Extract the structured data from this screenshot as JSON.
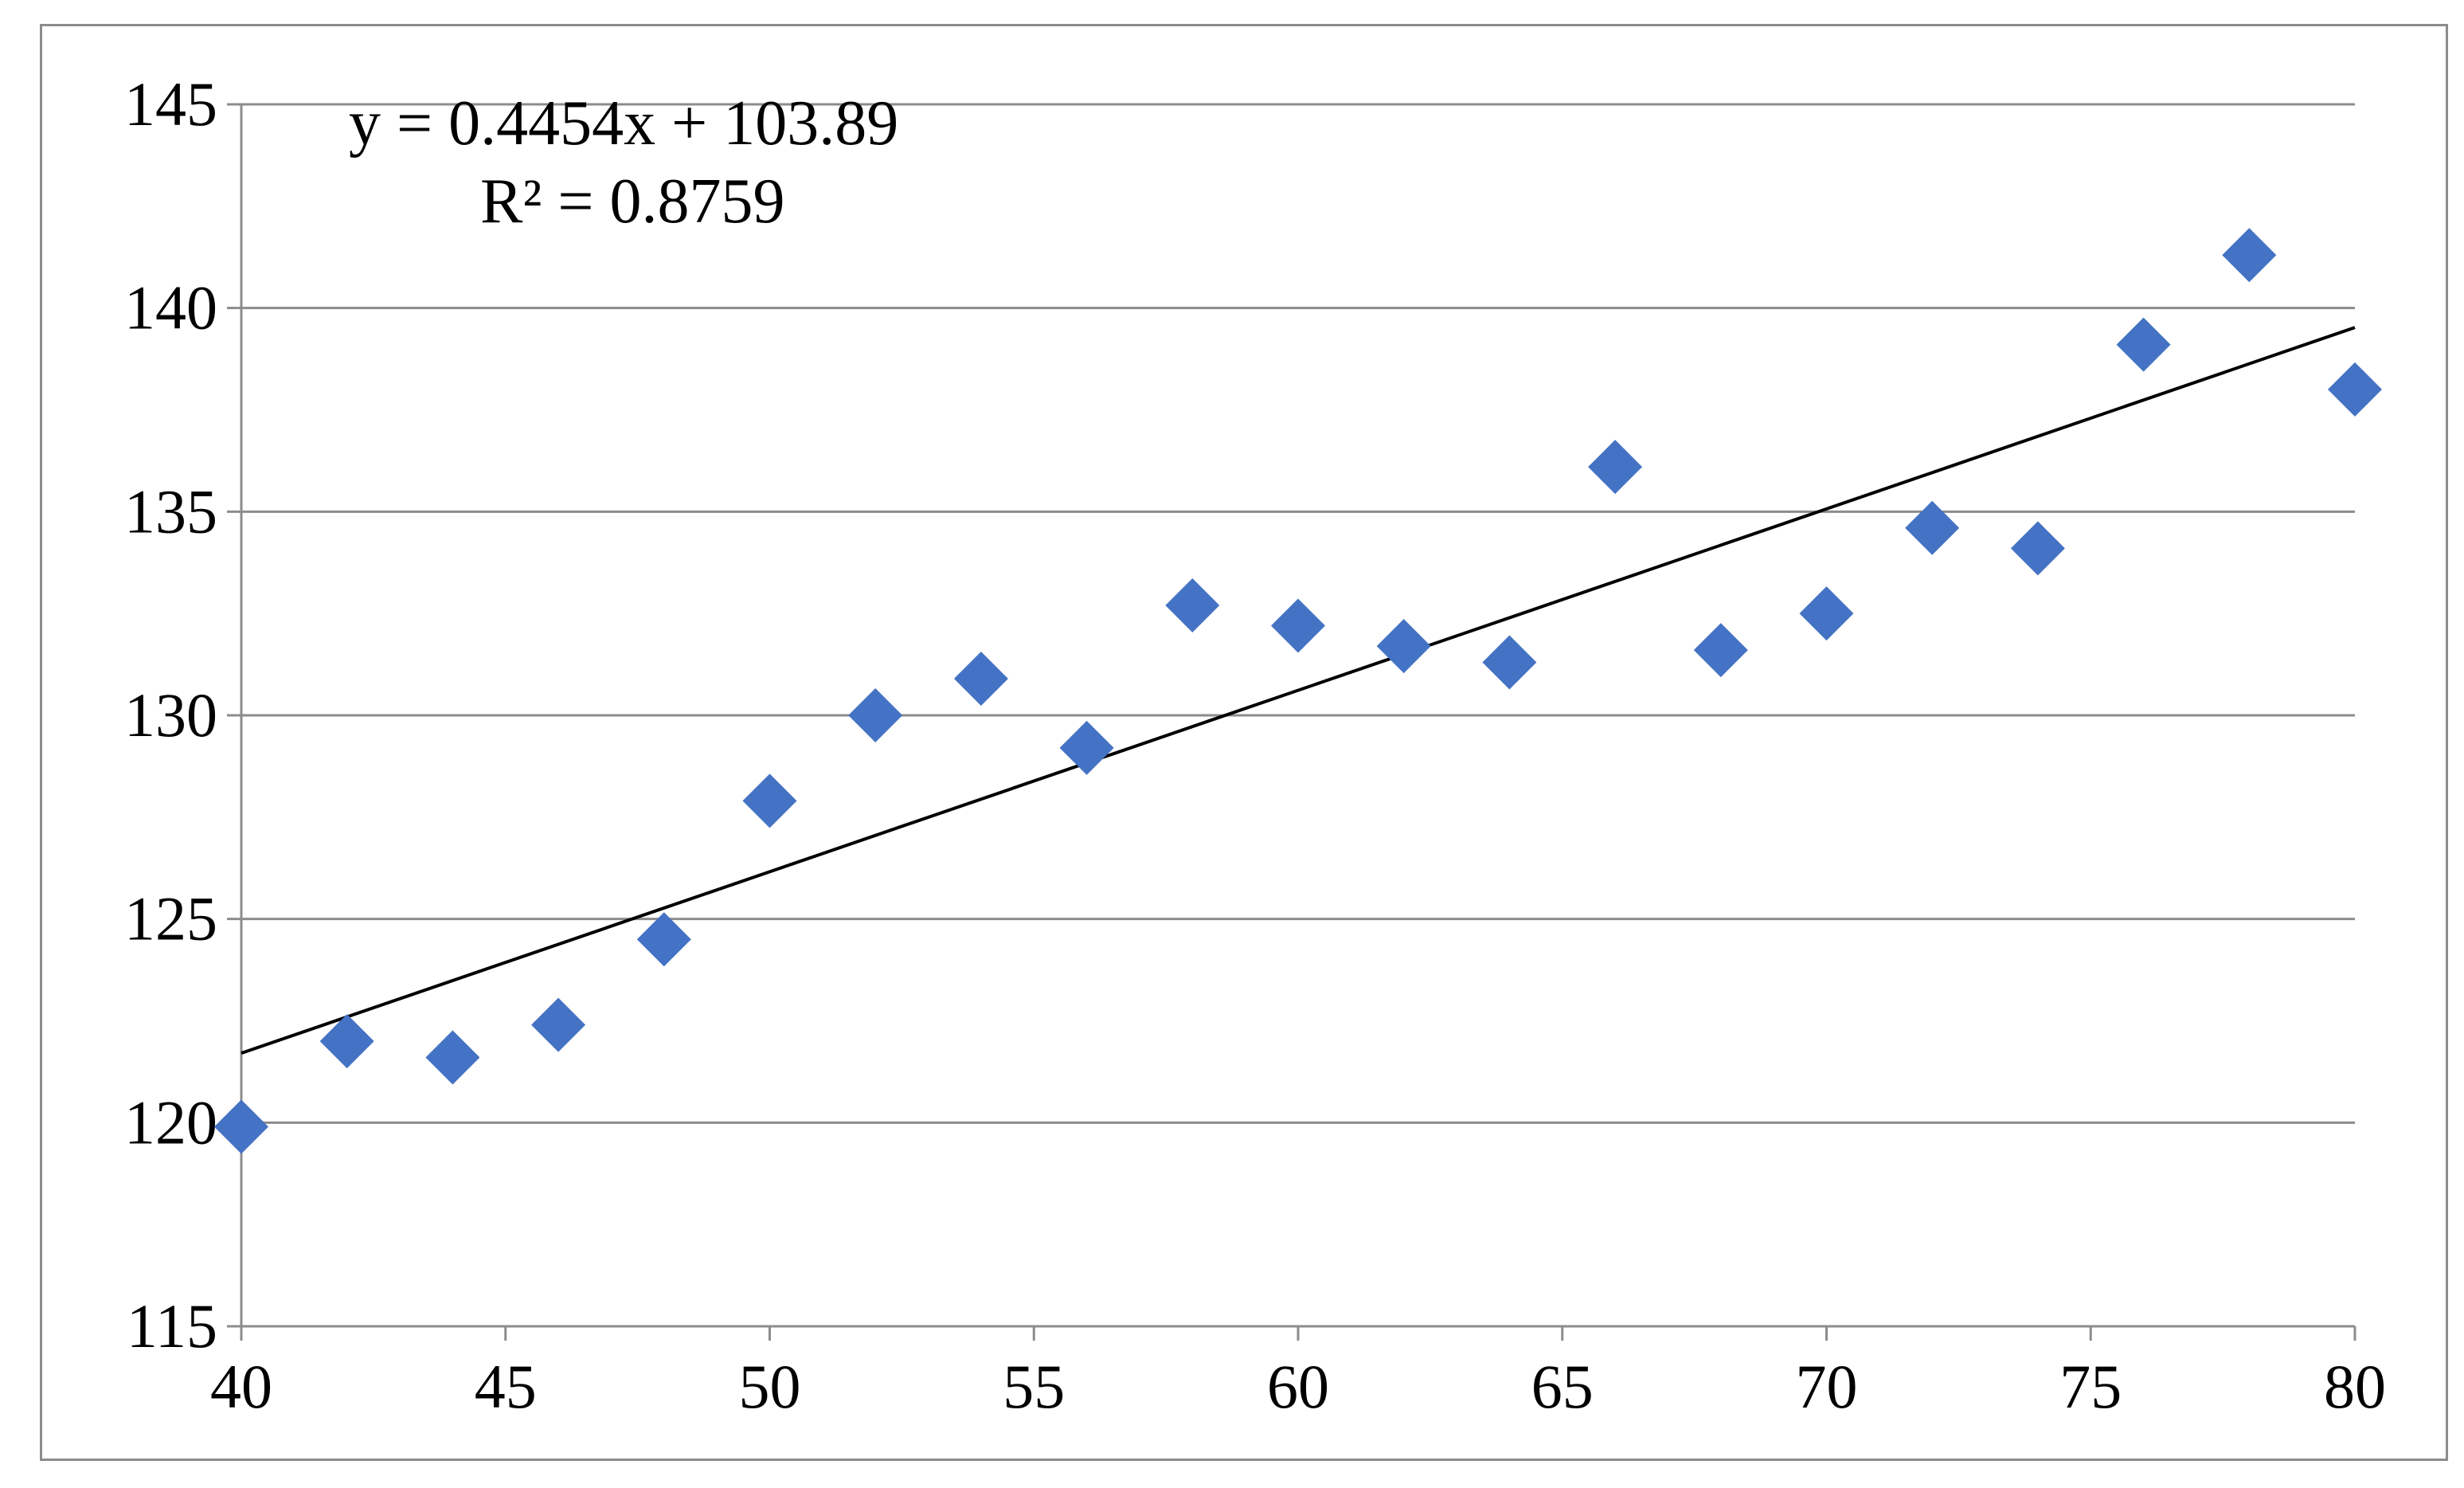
{
  "chart_data": {
    "type": "scatter",
    "title": "",
    "xlabel": "",
    "ylabel": "",
    "xlim": [
      40,
      80
    ],
    "ylim": [
      115,
      145
    ],
    "x_ticks": [
      40,
      45,
      50,
      55,
      60,
      65,
      70,
      75,
      80
    ],
    "y_ticks": [
      115,
      120,
      125,
      130,
      135,
      140,
      145
    ],
    "x_tick_labels": [
      "40",
      "45",
      "50",
      "55",
      "60",
      "65",
      "70",
      "75",
      "80"
    ],
    "y_tick_labels": [
      "115",
      "120",
      "125",
      "130",
      "135",
      "140",
      "145"
    ],
    "grid": "horizontal",
    "legend": "none",
    "series": [
      {
        "marker": "diamond",
        "color": "#4472C4",
        "points": [
          {
            "x": 40,
            "y": 119.9
          },
          {
            "x": 42,
            "y": 122.0
          },
          {
            "x": 44,
            "y": 121.6
          },
          {
            "x": 46,
            "y": 122.4
          },
          {
            "x": 48,
            "y": 124.5
          },
          {
            "x": 50,
            "y": 127.9
          },
          {
            "x": 52,
            "y": 130.0
          },
          {
            "x": 54,
            "y": 130.9
          },
          {
            "x": 56,
            "y": 129.2
          },
          {
            "x": 58,
            "y": 132.7
          },
          {
            "x": 60,
            "y": 132.2
          },
          {
            "x": 62,
            "y": 131.7
          },
          {
            "x": 64,
            "y": 131.3
          },
          {
            "x": 66,
            "y": 136.1
          },
          {
            "x": 68,
            "y": 131.6
          },
          {
            "x": 70,
            "y": 132.5
          },
          {
            "x": 72,
            "y": 134.6
          },
          {
            "x": 74,
            "y": 134.1
          },
          {
            "x": 76,
            "y": 139.1
          },
          {
            "x": 78,
            "y": 141.3
          },
          {
            "x": 80,
            "y": 138.0
          }
        ]
      }
    ],
    "trendline": {
      "type": "linear",
      "slope": 0.4454,
      "intercept": 103.89,
      "color": "#000000",
      "equation_label": "y = 0.4454x + 103.89",
      "r2_label": "R² = 0.8759"
    }
  }
}
